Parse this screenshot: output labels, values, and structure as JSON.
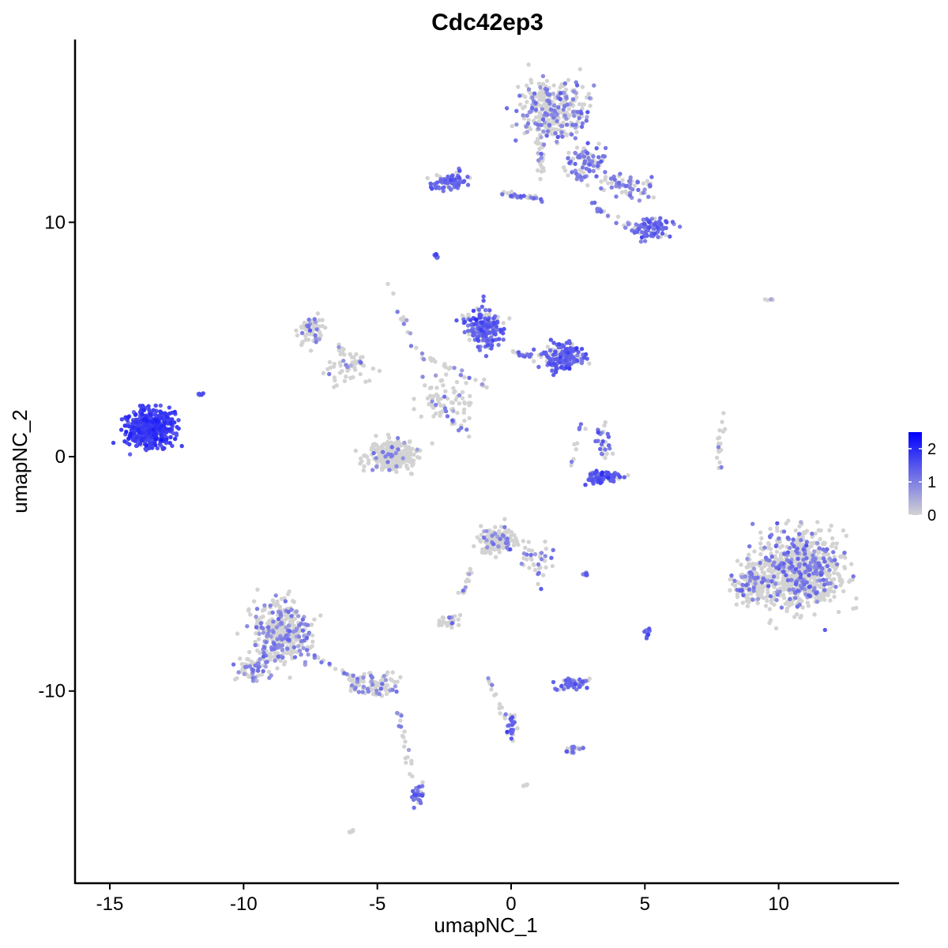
{
  "chart_data": {
    "type": "scatter",
    "title": "Cdc42ep3",
    "xlabel": "umapNC_1",
    "ylabel": "umapNC_2",
    "xlim": [
      -16.3,
      14.5
    ],
    "ylim": [
      -18.2,
      17.8
    ],
    "x_ticks": [
      -15,
      -10,
      -5,
      0,
      5,
      10
    ],
    "x_tick_labels": [
      "-15",
      "-10",
      "-5",
      "0",
      "5",
      "10"
    ],
    "y_ticks": [
      -10,
      0,
      10
    ],
    "y_tick_labels": [
      "-10",
      "0",
      "10"
    ],
    "color_scale": {
      "low_color": "#d3d3d3",
      "high_color": "#0000ff",
      "min": 0,
      "max": 2.5,
      "ticks": [
        0,
        1,
        2
      ],
      "tick_labels": [
        "0",
        "1",
        "2"
      ],
      "legend_placement": "right"
    },
    "grid": false,
    "clusters": [
      {
        "cx": -13.5,
        "cy": 1.2,
        "sx": 0.75,
        "sy": 0.7,
        "n": 420,
        "expr_mean": 1.7,
        "expr_frac": 0.95
      },
      {
        "cx": -11.6,
        "cy": 2.7,
        "sx": 0.1,
        "sy": 0.1,
        "n": 6,
        "expr_mean": 1.3,
        "expr_frac": 1.0
      },
      {
        "cx": 1.6,
        "cy": 14.7,
        "sx": 1.05,
        "sy": 1.1,
        "n": 330,
        "expr_mean": 0.9,
        "expr_frac": 0.35
      },
      {
        "cx": 2.8,
        "cy": 12.5,
        "sx": 0.7,
        "sy": 0.6,
        "n": 90,
        "expr_mean": 1.0,
        "expr_frac": 0.5
      },
      {
        "cx": -2.3,
        "cy": 11.7,
        "sx": 0.6,
        "sy": 0.35,
        "n": 80,
        "expr_mean": 1.2,
        "expr_frac": 0.8
      },
      {
        "cx": 5.3,
        "cy": 9.7,
        "sx": 0.6,
        "sy": 0.45,
        "n": 80,
        "expr_mean": 1.2,
        "expr_frac": 0.8
      },
      {
        "cx": 4.5,
        "cy": 11.5,
        "sx": 0.9,
        "sy": 0.5,
        "n": 60,
        "expr_mean": 1.0,
        "expr_frac": 0.6
      },
      {
        "cx": -2.8,
        "cy": 8.6,
        "sx": 0.1,
        "sy": 0.1,
        "n": 8,
        "expr_mean": 1.2,
        "expr_frac": 1.0
      },
      {
        "cx": -1.0,
        "cy": 5.5,
        "sx": 0.6,
        "sy": 0.7,
        "n": 200,
        "expr_mean": 1.3,
        "expr_frac": 0.75
      },
      {
        "cx": 1.9,
        "cy": 4.2,
        "sx": 0.65,
        "sy": 0.5,
        "n": 170,
        "expr_mean": 1.3,
        "expr_frac": 0.75
      },
      {
        "cx": -7.5,
        "cy": 5.4,
        "sx": 0.4,
        "sy": 0.5,
        "n": 70,
        "expr_mean": 0.9,
        "expr_frac": 0.25
      },
      {
        "cx": -6.0,
        "cy": 4.0,
        "sx": 0.9,
        "sy": 0.7,
        "n": 60,
        "expr_mean": 0.8,
        "expr_frac": 0.15
      },
      {
        "cx": -4.5,
        "cy": 0.0,
        "sx": 0.75,
        "sy": 0.55,
        "n": 280,
        "expr_mean": 0.9,
        "expr_frac": 0.08
      },
      {
        "cx": -2.5,
        "cy": 2.5,
        "sx": 0.8,
        "sy": 0.8,
        "n": 70,
        "expr_mean": 0.8,
        "expr_frac": 0.15
      },
      {
        "cx": 3.5,
        "cy": -0.9,
        "sx": 0.6,
        "sy": 0.2,
        "n": 80,
        "expr_mean": 1.4,
        "expr_frac": 0.8
      },
      {
        "cx": 3.4,
        "cy": 0.6,
        "sx": 0.3,
        "sy": 0.6,
        "n": 30,
        "expr_mean": 1.2,
        "expr_frac": 0.6
      },
      {
        "cx": 7.8,
        "cy": 0.2,
        "sx": 0.08,
        "sy": 0.8,
        "n": 15,
        "expr_mean": 0.8,
        "expr_frac": 0.1
      },
      {
        "cx": 10.8,
        "cy": -4.8,
        "sx": 1.35,
        "sy": 1.35,
        "n": 800,
        "expr_mean": 1.0,
        "expr_frac": 0.22
      },
      {
        "cx": 9.0,
        "cy": -5.5,
        "sx": 0.6,
        "sy": 0.8,
        "n": 150,
        "expr_mean": 1.0,
        "expr_frac": 0.2
      },
      {
        "cx": -0.5,
        "cy": -3.6,
        "sx": 0.6,
        "sy": 0.5,
        "n": 140,
        "expr_mean": 0.9,
        "expr_frac": 0.18
      },
      {
        "cx": 1.0,
        "cy": -4.3,
        "sx": 0.5,
        "sy": 0.5,
        "n": 30,
        "expr_mean": 1.0,
        "expr_frac": 0.3
      },
      {
        "cx": -8.6,
        "cy": -7.5,
        "sx": 0.9,
        "sy": 1.1,
        "n": 380,
        "expr_mean": 0.9,
        "expr_frac": 0.28
      },
      {
        "cx": -9.7,
        "cy": -9.0,
        "sx": 0.5,
        "sy": 0.4,
        "n": 60,
        "expr_mean": 0.9,
        "expr_frac": 0.3
      },
      {
        "cx": -5.2,
        "cy": -9.7,
        "sx": 0.8,
        "sy": 0.45,
        "n": 90,
        "expr_mean": 0.9,
        "expr_frac": 0.3
      },
      {
        "cx": -3.5,
        "cy": -14.4,
        "sx": 0.2,
        "sy": 0.4,
        "n": 30,
        "expr_mean": 1.2,
        "expr_frac": 0.8
      },
      {
        "cx": 2.3,
        "cy": -9.7,
        "sx": 0.5,
        "sy": 0.2,
        "n": 60,
        "expr_mean": 1.2,
        "expr_frac": 0.6
      },
      {
        "cx": 2.3,
        "cy": -12.5,
        "sx": 0.25,
        "sy": 0.15,
        "n": 20,
        "expr_mean": 1.1,
        "expr_frac": 0.6
      },
      {
        "cx": -2.3,
        "cy": -7.0,
        "sx": 0.4,
        "sy": 0.2,
        "n": 25,
        "expr_mean": 0.8,
        "expr_frac": 0.2
      },
      {
        "cx": 0.0,
        "cy": -11.5,
        "sx": 0.15,
        "sy": 0.6,
        "n": 25,
        "expr_mean": 1.3,
        "expr_frac": 0.7
      },
      {
        "cx": 2.8,
        "cy": -5.0,
        "sx": 0.12,
        "sy": 0.05,
        "n": 10,
        "expr_mean": 1.2,
        "expr_frac": 0.9
      },
      {
        "cx": 5.1,
        "cy": -7.5,
        "sx": 0.06,
        "sy": 0.3,
        "n": 12,
        "expr_mean": 1.3,
        "expr_frac": 0.9
      },
      {
        "cx": 9.7,
        "cy": 6.7,
        "sx": 0.2,
        "sy": 0.05,
        "n": 5,
        "expr_mean": 0.7,
        "expr_frac": 0.2
      },
      {
        "cx": -6.0,
        "cy": -16.0,
        "sx": 0.1,
        "sy": 0.05,
        "n": 5,
        "expr_mean": 0.6,
        "expr_frac": 0.0
      },
      {
        "cx": 0.6,
        "cy": -14.0,
        "sx": 0.1,
        "sy": 0.05,
        "n": 4,
        "expr_mean": 0.6,
        "expr_frac": 0.0
      }
    ],
    "trails": [
      {
        "from": [
          -0.5,
          11.2
        ],
        "to": [
          1.2,
          11.0
        ],
        "n": 30,
        "expr_mean": 1.1,
        "expr_frac": 0.5
      },
      {
        "from": [
          1.2,
          11.8
        ],
        "to": [
          1.1,
          13.5
        ],
        "n": 20,
        "expr_mean": 0.9,
        "expr_frac": 0.3
      },
      {
        "from": [
          3.0,
          10.8
        ],
        "to": [
          4.8,
          9.5
        ],
        "n": 25,
        "expr_mean": 1.0,
        "expr_frac": 0.5
      },
      {
        "from": [
          -4.6,
          7.4
        ],
        "to": [
          -3.6,
          4.5
        ],
        "n": 12,
        "expr_mean": 0.9,
        "expr_frac": 0.3
      },
      {
        "from": [
          -3.3,
          4.3
        ],
        "to": [
          -0.8,
          3.0
        ],
        "n": 25,
        "expr_mean": 0.8,
        "expr_frac": 0.3
      },
      {
        "from": [
          0.0,
          4.5
        ],
        "to": [
          1.0,
          4.2
        ],
        "n": 20,
        "expr_mean": 1.1,
        "expr_frac": 0.6
      },
      {
        "from": [
          -2.5,
          1.8
        ],
        "to": [
          -1.5,
          0.8
        ],
        "n": 12,
        "expr_mean": 1.0,
        "expr_frac": 0.5
      },
      {
        "from": [
          2.7,
          1.4
        ],
        "to": [
          2.3,
          -0.5
        ],
        "n": 10,
        "expr_mean": 1.1,
        "expr_frac": 0.5
      },
      {
        "from": [
          -1.5,
          -4.7
        ],
        "to": [
          -1.9,
          -6.0
        ],
        "n": 15,
        "expr_mean": 0.7,
        "expr_frac": 0.1
      },
      {
        "from": [
          -7.8,
          -8.3
        ],
        "to": [
          -5.8,
          -9.5
        ],
        "n": 20,
        "expr_mean": 1.0,
        "expr_frac": 0.35
      },
      {
        "from": [
          -4.2,
          -10.8
        ],
        "to": [
          -3.7,
          -13.8
        ],
        "n": 22,
        "expr_mean": 0.9,
        "expr_frac": 0.3
      },
      {
        "from": [
          -1.0,
          -9.4
        ],
        "to": [
          -0.1,
          -11.3
        ],
        "n": 15,
        "expr_mean": 0.8,
        "expr_frac": 0.25
      },
      {
        "from": [
          1.1,
          -4.5
        ],
        "to": [
          1.1,
          -5.8
        ],
        "n": 8,
        "expr_mean": 1.1,
        "expr_frac": 0.6
      },
      {
        "from": [
          7.8,
          2.0
        ],
        "to": [
          7.9,
          0.8
        ],
        "n": 5,
        "expr_mean": 0.7,
        "expr_frac": 0.0
      }
    ]
  }
}
